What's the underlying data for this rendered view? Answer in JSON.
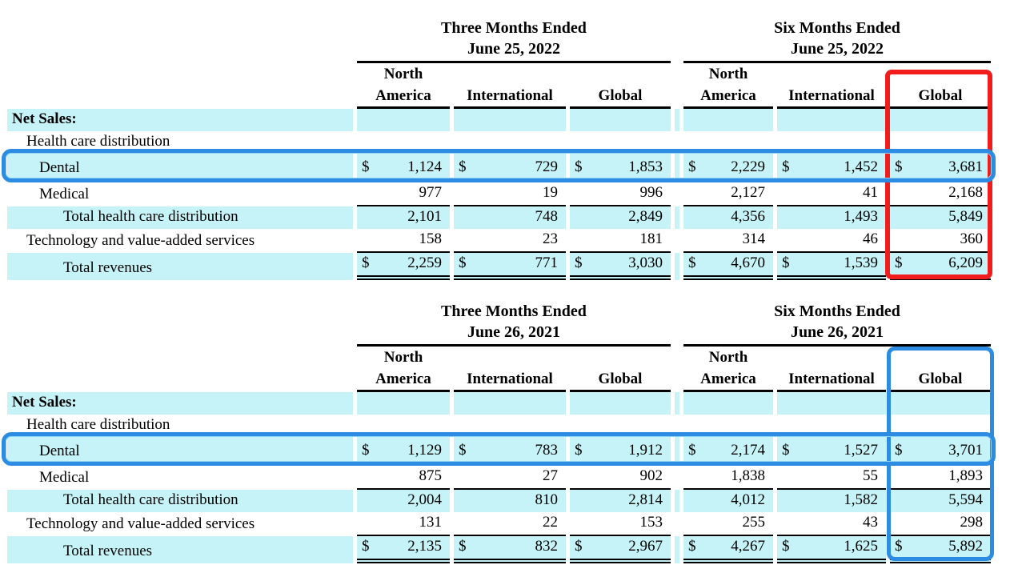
{
  "currency": "$",
  "colors": {
    "highlight_cyan": "#c6f3f7",
    "annotation_red": "#f11c1c",
    "annotation_blue": "#2b8ce2",
    "text": "#000000",
    "background": "#ffffff"
  },
  "tables": [
    {
      "name": "net-sales-2022",
      "groups": [
        {
          "line1": "Three Months Ended",
          "line2": "June 25, 2022"
        },
        {
          "line1": "Six Months Ended",
          "line2": "June 25, 2022"
        }
      ],
      "col_headers": [
        [
          "North",
          "America"
        ],
        [
          "International"
        ],
        [
          "Global"
        ],
        [
          "North",
          "America"
        ],
        [
          "International"
        ],
        [
          "Global"
        ]
      ],
      "section": "Net Sales:",
      "rows": [
        {
          "label": "Health care distribution",
          "values": [
            "",
            "",
            "",
            "",
            "",
            ""
          ]
        },
        {
          "label": "Dental",
          "values": [
            "1,124",
            "729",
            "1,853",
            "2,229",
            "1,452",
            "3,681"
          ]
        },
        {
          "label": "Medical",
          "values": [
            "977",
            "19",
            "996",
            "2,127",
            "41",
            "2,168"
          ]
        },
        {
          "label": "Total health care distribution",
          "values": [
            "2,101",
            "748",
            "2,849",
            "4,356",
            "1,493",
            "5,849"
          ]
        },
        {
          "label": "Technology and value-added services",
          "values": [
            "158",
            "23",
            "181",
            "314",
            "46",
            "360"
          ]
        },
        {
          "label": "Total revenues",
          "values": [
            "2,259",
            "771",
            "3,030",
            "4,670",
            "1,539",
            "6,209"
          ]
        }
      ]
    },
    {
      "name": "net-sales-2021",
      "groups": [
        {
          "line1": "Three Months Ended",
          "line2": "June 26, 2021"
        },
        {
          "line1": "Six Months Ended",
          "line2": "June 26, 2021"
        }
      ],
      "col_headers": [
        [
          "North",
          "America"
        ],
        [
          "International"
        ],
        [
          "Global"
        ],
        [
          "North",
          "America"
        ],
        [
          "International"
        ],
        [
          "Global"
        ]
      ],
      "section": "Net Sales:",
      "rows": [
        {
          "label": "Health care distribution",
          "values": [
            "",
            "",
            "",
            "",
            "",
            ""
          ]
        },
        {
          "label": "Dental",
          "values": [
            "1,129",
            "783",
            "1,912",
            "2,174",
            "1,527",
            "3,701"
          ]
        },
        {
          "label": "Medical",
          "values": [
            "875",
            "27",
            "902",
            "1,838",
            "55",
            "1,893"
          ]
        },
        {
          "label": "Total health care distribution",
          "values": [
            "2,004",
            "810",
            "2,814",
            "4,012",
            "1,582",
            "5,594"
          ]
        },
        {
          "label": "Technology and value-added services",
          "values": [
            "131",
            "22",
            "153",
            "255",
            "43",
            "298"
          ]
        },
        {
          "label": "Total revenues",
          "values": [
            "2,135",
            "832",
            "2,967",
            "4,267",
            "1,625",
            "5,892"
          ]
        }
      ]
    }
  ],
  "annotations": [
    {
      "name": "red-box-global-column-2022",
      "color": "#f11c1c"
    },
    {
      "name": "blue-box-dental-row-2022",
      "color": "#2b8ce2"
    },
    {
      "name": "blue-box-global-column-2021",
      "color": "#2b8ce2"
    },
    {
      "name": "blue-box-dental-row-2021",
      "color": "#2b8ce2"
    }
  ]
}
